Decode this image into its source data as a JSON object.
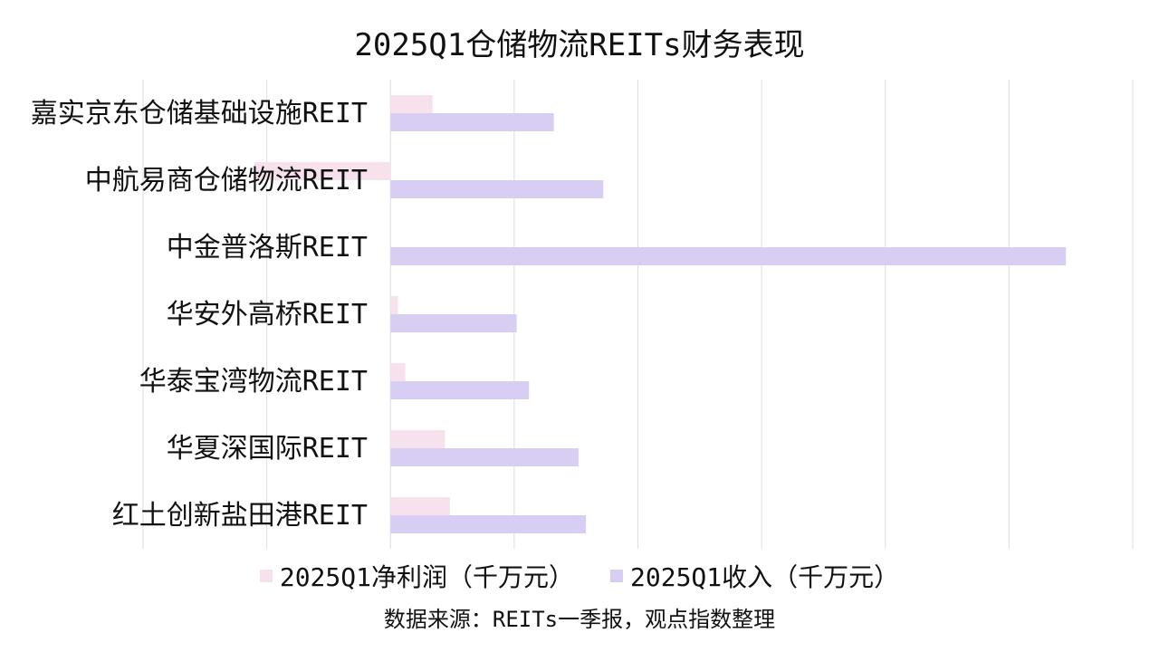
{
  "chart_data": {
    "type": "bar",
    "orientation": "horizontal",
    "title": "2025Q1仓储物流REITs财务表现",
    "categories": [
      "嘉实京东仓储基础设施REIT",
      "中航易商仓储物流REIT",
      "中金普洛斯REIT",
      "华安外高桥REIT",
      "华泰宝湾物流REIT",
      "华夏深国际REIT",
      "红土创新盐田港REIT"
    ],
    "series": [
      {
        "name": "2025Q1净利润（千万元）",
        "color": "#f6e1ec",
        "values": [
          1.7,
          -5.5,
          0,
          0.3,
          0.6,
          2.2,
          2.4
        ]
      },
      {
        "name": "2025Q1收入（千万元）",
        "color": "#d8cdf3",
        "values": [
          6.6,
          8.6,
          27.3,
          5.1,
          5.6,
          7.6,
          7.9
        ]
      }
    ],
    "xlim": [
      -10,
      30
    ],
    "grid": true,
    "legend_position": "bottom",
    "source": "数据来源：REITs一季报，观点指数整理"
  }
}
